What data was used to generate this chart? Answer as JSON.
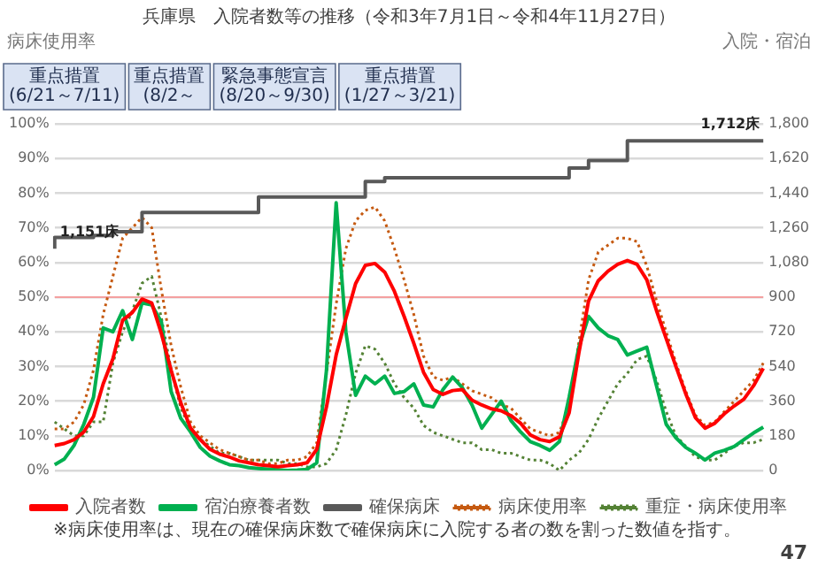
{
  "chart_data": {
    "type": "line",
    "title": "兵庫県　入院者数等の推移（令和3年7月1日～令和4年11月27日）",
    "ylabel": "病床使用率",
    "y2label": "入院・宿泊",
    "categories": [
      null,
      null,
      null,
      null,
      null,
      null,
      null,
      null,
      null,
      null,
      null,
      null,
      null,
      null,
      null,
      null,
      null,
      null,
      null,
      null,
      null,
      null,
      null,
      null,
      null,
      null,
      null,
      null,
      null,
      null,
      null,
      null,
      null,
      null,
      null,
      null,
      null,
      null,
      null,
      null,
      null,
      null,
      null,
      null,
      null,
      null,
      null,
      null,
      null,
      null,
      null,
      null,
      null,
      null,
      null,
      null,
      null,
      null,
      null,
      null,
      null,
      null,
      null,
      null,
      null,
      null,
      null,
      null,
      null,
      null,
      null,
      null,
      null,
      null
    ],
    "ylim": [
      0,
      100
    ],
    "yticks": [
      {
        "value": 0,
        "label": "0%"
      },
      {
        "value": 10,
        "label": "10%"
      },
      {
        "value": 20,
        "label": "20%"
      },
      {
        "value": 30,
        "label": "30%"
      },
      {
        "value": 40,
        "label": "40%"
      },
      {
        "value": 50,
        "label": "50%"
      },
      {
        "value": 60,
        "label": "60%"
      },
      {
        "value": 70,
        "label": "70%"
      },
      {
        "value": 80,
        "label": "80%"
      },
      {
        "value": 90,
        "label": "90%"
      },
      {
        "value": 100,
        "label": "100%"
      }
    ],
    "y2lim": [
      0,
      1800
    ],
    "y2ticks": [
      0,
      180,
      360,
      540,
      720,
      900,
      {
        "value": 1080,
        "label": "1,080"
      },
      {
        "value": 1260,
        "label": "1,260"
      },
      {
        "value": 1440,
        "label": "1,440"
      },
      {
        "value": 1620,
        "label": "1,620"
      },
      {
        "value": 1800,
        "label": "1,800"
      }
    ],
    "tick_labels": "y",
    "grid": "y",
    "legend": "bottom",
    "marker": "none",
    "series": [
      {
        "name": "入院者数",
        "color": "#ff0000",
        "axis": "y2",
        "values": [
          130,
          140,
          160,
          200,
          280,
          450,
          580,
          780,
          820,
          890,
          870,
          710,
          520,
          350,
          220,
          160,
          110,
          85,
          70,
          50,
          40,
          30,
          25,
          20,
          25,
          30,
          40,
          110,
          330,
          600,
          790,
          970,
          1065,
          1075,
          1030,
          930,
          800,
          660,
          510,
          420,
          395,
          415,
          420,
          365,
          340,
          320,
          310,
          285,
          245,
          185,
          160,
          150,
          175,
          300,
          610,
          880,
          985,
          1035,
          1070,
          1090,
          1070,
          990,
          830,
          685,
          540,
          400,
          275,
          220,
          245,
          295,
          335,
          370,
          440,
          530
        ]
      },
      {
        "name": "宿泊療養者数",
        "color": "#00b050",
        "axis": "y2",
        "values": [
          30,
          60,
          130,
          240,
          380,
          740,
          720,
          830,
          680,
          870,
          860,
          770,
          410,
          270,
          200,
          120,
          75,
          50,
          30,
          25,
          15,
          10,
          7,
          4,
          0,
          2,
          6,
          40,
          520,
          1390,
          720,
          390,
          490,
          450,
          490,
          400,
          410,
          450,
          340,
          330,
          420,
          485,
          430,
          340,
          220,
          290,
          360,
          260,
          200,
          150,
          130,
          105,
          150,
          380,
          640,
          800,
          740,
          700,
          680,
          600,
          620,
          640,
          440,
          240,
          170,
          120,
          90,
          55,
          90,
          105,
          125,
          160,
          195,
          225
        ]
      },
      {
        "name": "確保病床",
        "color": "#595959",
        "axis": "y2",
        "type": "step",
        "values": [
          1151,
          1210,
          1210,
          1210,
          1210,
          1220,
          1220,
          1240,
          1240,
          1240,
          1340,
          1340,
          1340,
          1340,
          1340,
          1340,
          1340,
          1340,
          1340,
          1340,
          1340,
          1340,
          1420,
          1420,
          1420,
          1420,
          1420,
          1420,
          1420,
          1420,
          1420,
          1420,
          1420,
          1500,
          1500,
          1520,
          1520,
          1520,
          1520,
          1520,
          1520,
          1520,
          1520,
          1520,
          1520,
          1520,
          1520,
          1520,
          1520,
          1520,
          1520,
          1520,
          1520,
          1520,
          1570,
          1570,
          1610,
          1610,
          1610,
          1610,
          1712,
          1712,
          1712,
          1712,
          1712,
          1712,
          1712,
          1712,
          1712,
          1712,
          1712,
          1712,
          1712,
          1712
        ],
        "value_labels": [
          "1,151床",
          null,
          null,
          null,
          null,
          null,
          null,
          null,
          null,
          null,
          null,
          null,
          null,
          null,
          null,
          null,
          null,
          null,
          null,
          null,
          null,
          null,
          null,
          null,
          null,
          null,
          null,
          null,
          null,
          null,
          null,
          null,
          null,
          null,
          null,
          null,
          null,
          null,
          null,
          null,
          null,
          null,
          null,
          null,
          null,
          null,
          null,
          null,
          null,
          null,
          null,
          null,
          null,
          null,
          null,
          null,
          null,
          null,
          null,
          null,
          null,
          null,
          null,
          null,
          null,
          null,
          null,
          null,
          null,
          null,
          null,
          null,
          null,
          "1,712床"
        ]
      },
      {
        "name": "病床使用率",
        "color": "#c55a11",
        "line_style": "dotted",
        "values": [
          12,
          12,
          14,
          19,
          29,
          45,
          56,
          67,
          70,
          73,
          70,
          52,
          36,
          24,
          14,
          10,
          8,
          6,
          5,
          4,
          3,
          3,
          2,
          2,
          3,
          3,
          4,
          8,
          28,
          48,
          64,
          72,
          75,
          76,
          72,
          64,
          55,
          45,
          33,
          27,
          26,
          27,
          25,
          23,
          22,
          21,
          19,
          18,
          15,
          12,
          11,
          10,
          11,
          19,
          37,
          55,
          63,
          65,
          67,
          67,
          66,
          59,
          49,
          40,
          31,
          23,
          16,
          13,
          14,
          17,
          20,
          23,
          26,
          31
        ]
      },
      {
        "name": "重症・病床使用率",
        "color": "#548235",
        "line_style": "dotted",
        "values": [
          14,
          12,
          10,
          10,
          14,
          14,
          31,
          40,
          46,
          54,
          56,
          44,
          29,
          18,
          12,
          9,
          7,
          5,
          5,
          4,
          3,
          3,
          3,
          3,
          2,
          2,
          1,
          1,
          2,
          6,
          16,
          28,
          36,
          35,
          31,
          25,
          21,
          18,
          13,
          11,
          10,
          9,
          8,
          8,
          6,
          6,
          5,
          5,
          4,
          3,
          3,
          2,
          0,
          3,
          5,
          9,
          15,
          20,
          25,
          28,
          32,
          33,
          26,
          17,
          10,
          7,
          4,
          3,
          3,
          5,
          7,
          8,
          8,
          9
        ]
      }
    ],
    "ref_lines": [
      {
        "axis": "y",
        "value": 50,
        "color": "#f4a0a0"
      }
    ],
    "annotations": [
      "重点措置 (6/21～7/11)",
      "重点措置 (8/2～",
      "緊急事態宣言 (8/20～9/30)",
      "重点措置 (1/27～3/21)",
      "※病床使用率は、現在の確保病床数で確保病床に入院する者の数を割った数値を指す。",
      "47"
    ]
  }
}
